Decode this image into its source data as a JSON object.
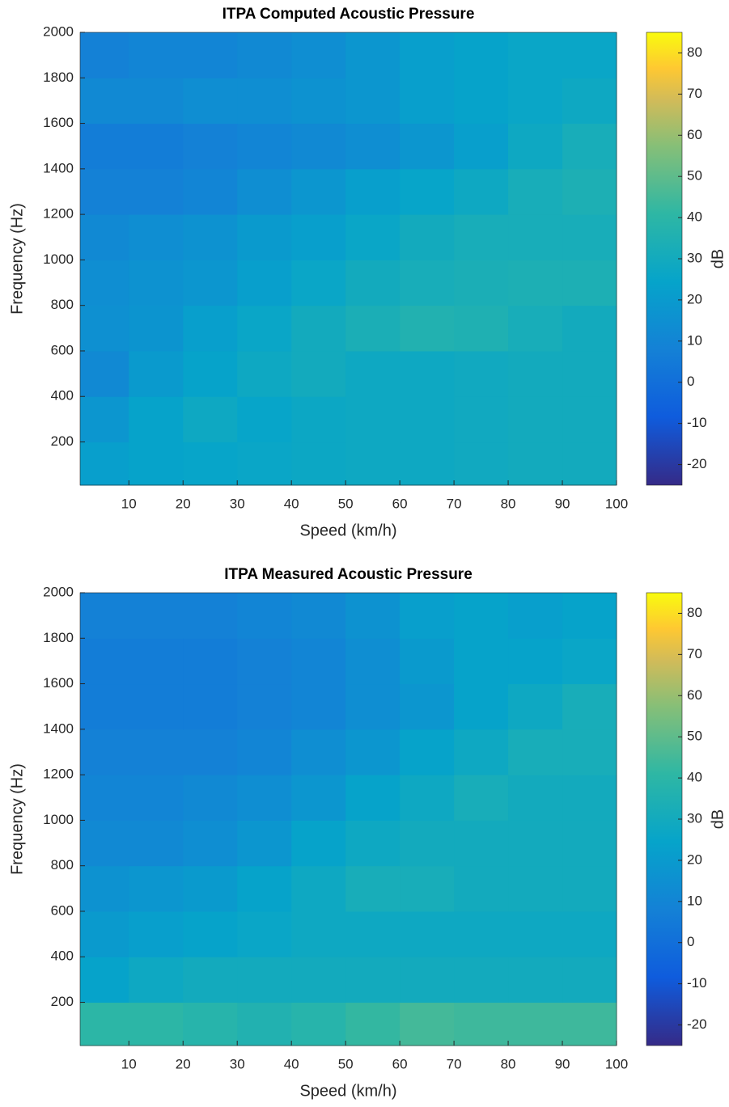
{
  "chart_data": [
    {
      "type": "heatmap",
      "title": "ITPA Computed Acoustic Pressure",
      "xlabel": "Speed (km/h)",
      "ylabel": "Frequency (Hz)",
      "colorbar_label": "dB",
      "x": [
        5,
        15,
        25,
        35,
        45,
        55,
        65,
        75,
        85,
        95
      ],
      "y": [
        100,
        300,
        500,
        700,
        900,
        1100,
        1300,
        1500,
        1700,
        1900
      ],
      "values": [
        [
          22,
          24,
          25,
          26,
          27,
          28,
          28,
          29,
          30,
          30
        ],
        [
          18,
          24,
          28,
          25,
          27,
          28,
          28,
          29,
          30,
          30
        ],
        [
          12,
          20,
          24,
          28,
          30,
          28,
          28,
          29,
          30,
          30
        ],
        [
          15,
          17,
          22,
          26,
          30,
          33,
          36,
          35,
          32,
          30
        ],
        [
          14,
          16,
          18,
          22,
          26,
          30,
          32,
          33,
          34,
          34
        ],
        [
          12,
          14,
          16,
          20,
          22,
          26,
          30,
          32,
          32,
          32
        ],
        [
          8,
          8,
          10,
          14,
          18,
          22,
          25,
          28,
          32,
          34
        ],
        [
          6,
          6,
          8,
          10,
          12,
          14,
          18,
          22,
          28,
          32
        ],
        [
          12,
          12,
          14,
          14,
          16,
          18,
          22,
          24,
          26,
          28
        ],
        [
          8,
          10,
          10,
          12,
          14,
          18,
          22,
          24,
          26,
          26
        ]
      ],
      "xlim": [
        1,
        100
      ],
      "xticks": [
        10,
        20,
        30,
        40,
        50,
        60,
        70,
        80,
        90,
        100
      ],
      "ylim": [
        10,
        2000
      ],
      "yticks": [
        200,
        400,
        600,
        800,
        1000,
        1200,
        1400,
        1600,
        1800,
        2000
      ],
      "clim": [
        -25,
        85
      ],
      "cticks": [
        -20,
        -10,
        0,
        10,
        20,
        30,
        40,
        50,
        60,
        70,
        80
      ],
      "colormap": "parula"
    },
    {
      "type": "heatmap",
      "title": "ITPA Measured Acoustic Pressure",
      "xlabel": "Speed (km/h)",
      "ylabel": "Frequency (Hz)",
      "colorbar_label": "dB",
      "x": [
        5,
        15,
        25,
        35,
        45,
        55,
        65,
        75,
        85,
        95
      ],
      "y": [
        100,
        300,
        500,
        700,
        900,
        1100,
        1300,
        1500,
        1700,
        1900
      ],
      "values": [
        [
          40,
          40,
          38,
          36,
          38,
          42,
          45,
          44,
          44,
          44
        ],
        [
          24,
          28,
          30,
          30,
          30,
          30,
          30,
          30,
          30,
          30
        ],
        [
          20,
          22,
          24,
          26,
          28,
          28,
          28,
          28,
          28,
          28
        ],
        [
          16,
          18,
          20,
          24,
          28,
          32,
          32,
          30,
          30,
          30
        ],
        [
          12,
          12,
          14,
          18,
          24,
          28,
          30,
          30,
          30,
          30
        ],
        [
          10,
          10,
          12,
          14,
          18,
          24,
          28,
          32,
          30,
          30
        ],
        [
          8,
          8,
          8,
          10,
          14,
          18,
          24,
          28,
          32,
          32
        ],
        [
          6,
          6,
          6,
          8,
          10,
          14,
          18,
          24,
          28,
          32
        ],
        [
          6,
          6,
          6,
          8,
          10,
          14,
          20,
          24,
          24,
          26
        ],
        [
          8,
          8,
          8,
          10,
          12,
          16,
          22,
          24,
          22,
          24
        ]
      ],
      "xlim": [
        1,
        100
      ],
      "xticks": [
        10,
        20,
        30,
        40,
        50,
        60,
        70,
        80,
        90,
        100
      ],
      "ylim": [
        10,
        2000
      ],
      "yticks": [
        200,
        400,
        600,
        800,
        1000,
        1200,
        1400,
        1600,
        1800,
        2000
      ],
      "clim": [
        -25,
        85
      ],
      "cticks": [
        -20,
        -10,
        0,
        10,
        20,
        30,
        40,
        50,
        60,
        70,
        80
      ],
      "colormap": "parula"
    }
  ]
}
